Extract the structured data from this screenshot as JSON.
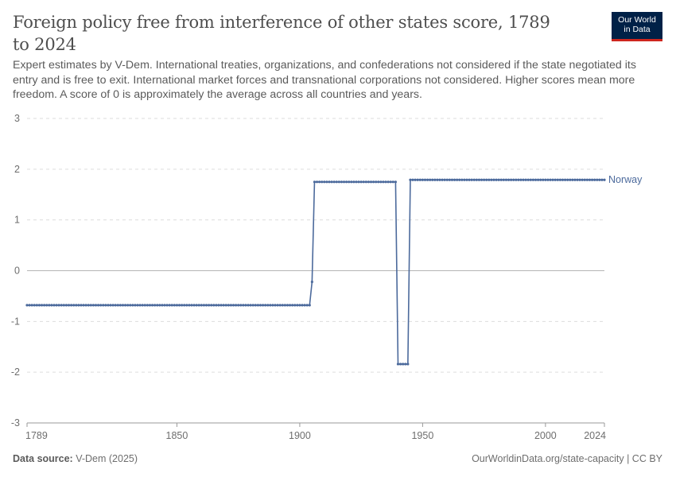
{
  "header": {
    "title": "Foreign policy free from interference of other states score, 1789 to 2024",
    "subtitle": "Expert estimates by V-Dem. International treaties, organizations, and confederations not considered if the state negotiated its entry and is free to exit. International market forces and transnational corporations not considered. Higher scores mean more freedom. A score of 0 is approximately the average across all countries and years.",
    "logo_line1": "Our World",
    "logo_line2": "in Data"
  },
  "footer": {
    "source_label": "Data source:",
    "source_value": "V-Dem (2025)",
    "url": "OurWorldinData.org/state-capacity | CC BY"
  },
  "colors": {
    "series": "#4c6a9c",
    "logo_bg": "#002147",
    "logo_accent": "#ce261e"
  },
  "chart_data": {
    "type": "line",
    "title": "Foreign policy free from interference of other states score, 1789 to 2024",
    "xlabel": "",
    "ylabel": "",
    "xlim": [
      1789,
      2024
    ],
    "ylim": [
      -3,
      3
    ],
    "x_ticks": [
      "1789",
      "1850",
      "1900",
      "1950",
      "2000",
      "2024"
    ],
    "y_ticks": [
      "3",
      "2",
      "1",
      "0",
      "-1",
      "-2",
      "-3"
    ],
    "grid": true,
    "legend": "right-end label",
    "series": [
      {
        "name": "Norway",
        "segments": [
          {
            "from": 1789,
            "to": 1904,
            "value": -0.68
          },
          {
            "from": 1905,
            "to": 1905,
            "value": -0.22
          },
          {
            "from": 1906,
            "to": 1939,
            "value": 1.75
          },
          {
            "from": 1940,
            "to": 1944,
            "value": -1.84
          },
          {
            "from": 1945,
            "to": 2024,
            "value": 1.79
          }
        ]
      }
    ]
  }
}
